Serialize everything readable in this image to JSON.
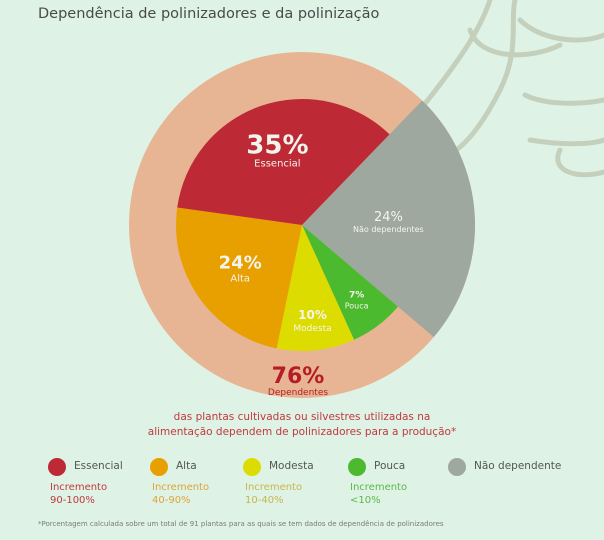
{
  "title": "Dependência de polinizadores e da polinização",
  "chart_data": {
    "type": "pie",
    "title": "Dependência de polinizadores e da polinização",
    "slices": [
      {
        "label": "Essencial",
        "value": 35,
        "display": "35%",
        "color": "#bd2a35"
      },
      {
        "label": "Alta",
        "value": 24,
        "display": "24%",
        "color": "#e8a000"
      },
      {
        "label": "Modesta",
        "value": 10,
        "display": "10%",
        "color": "#dcdc00"
      },
      {
        "label": "Pouca",
        "value": 7,
        "display": "7%",
        "color": "#4cba2e"
      },
      {
        "label": "Não dependentes",
        "value": 24,
        "display": "24%",
        "color": "#9ea89f"
      }
    ],
    "ring": {
      "value": 76,
      "display": "76%",
      "label": "Dependentes",
      "color": "#e7b593",
      "text_color": "#b51c25"
    }
  },
  "subtitle": [
    "das plantas cultivadas ou silvestres utilizadas na",
    "alimentação dependem de polinizadores para a produção*"
  ],
  "legend": [
    {
      "name": "Essencial",
      "color": "#bd2a35",
      "inc1": "Incremento",
      "inc2": "90-100%",
      "text_color": "#c0393e"
    },
    {
      "name": "Alta",
      "color": "#e8a000",
      "inc1": "Incremento",
      "inc2": "40-90%",
      "text_color": "#e0a33a"
    },
    {
      "name": "Modesta",
      "color": "#dcdc00",
      "inc1": "Incremento",
      "inc2": "10-40%",
      "text_color": "#c9b54a"
    },
    {
      "name": "Pouca",
      "color": "#4cba2e",
      "inc1": "Incremento",
      "inc2": "<10%",
      "text_color": "#5cb84a"
    },
    {
      "name": "Não dependente",
      "color": "#9ea89f"
    }
  ],
  "footnote": "*Porcentagem calculada sobre um total de 91 plantas para as quais se tem dados de dependência de polinizadores"
}
